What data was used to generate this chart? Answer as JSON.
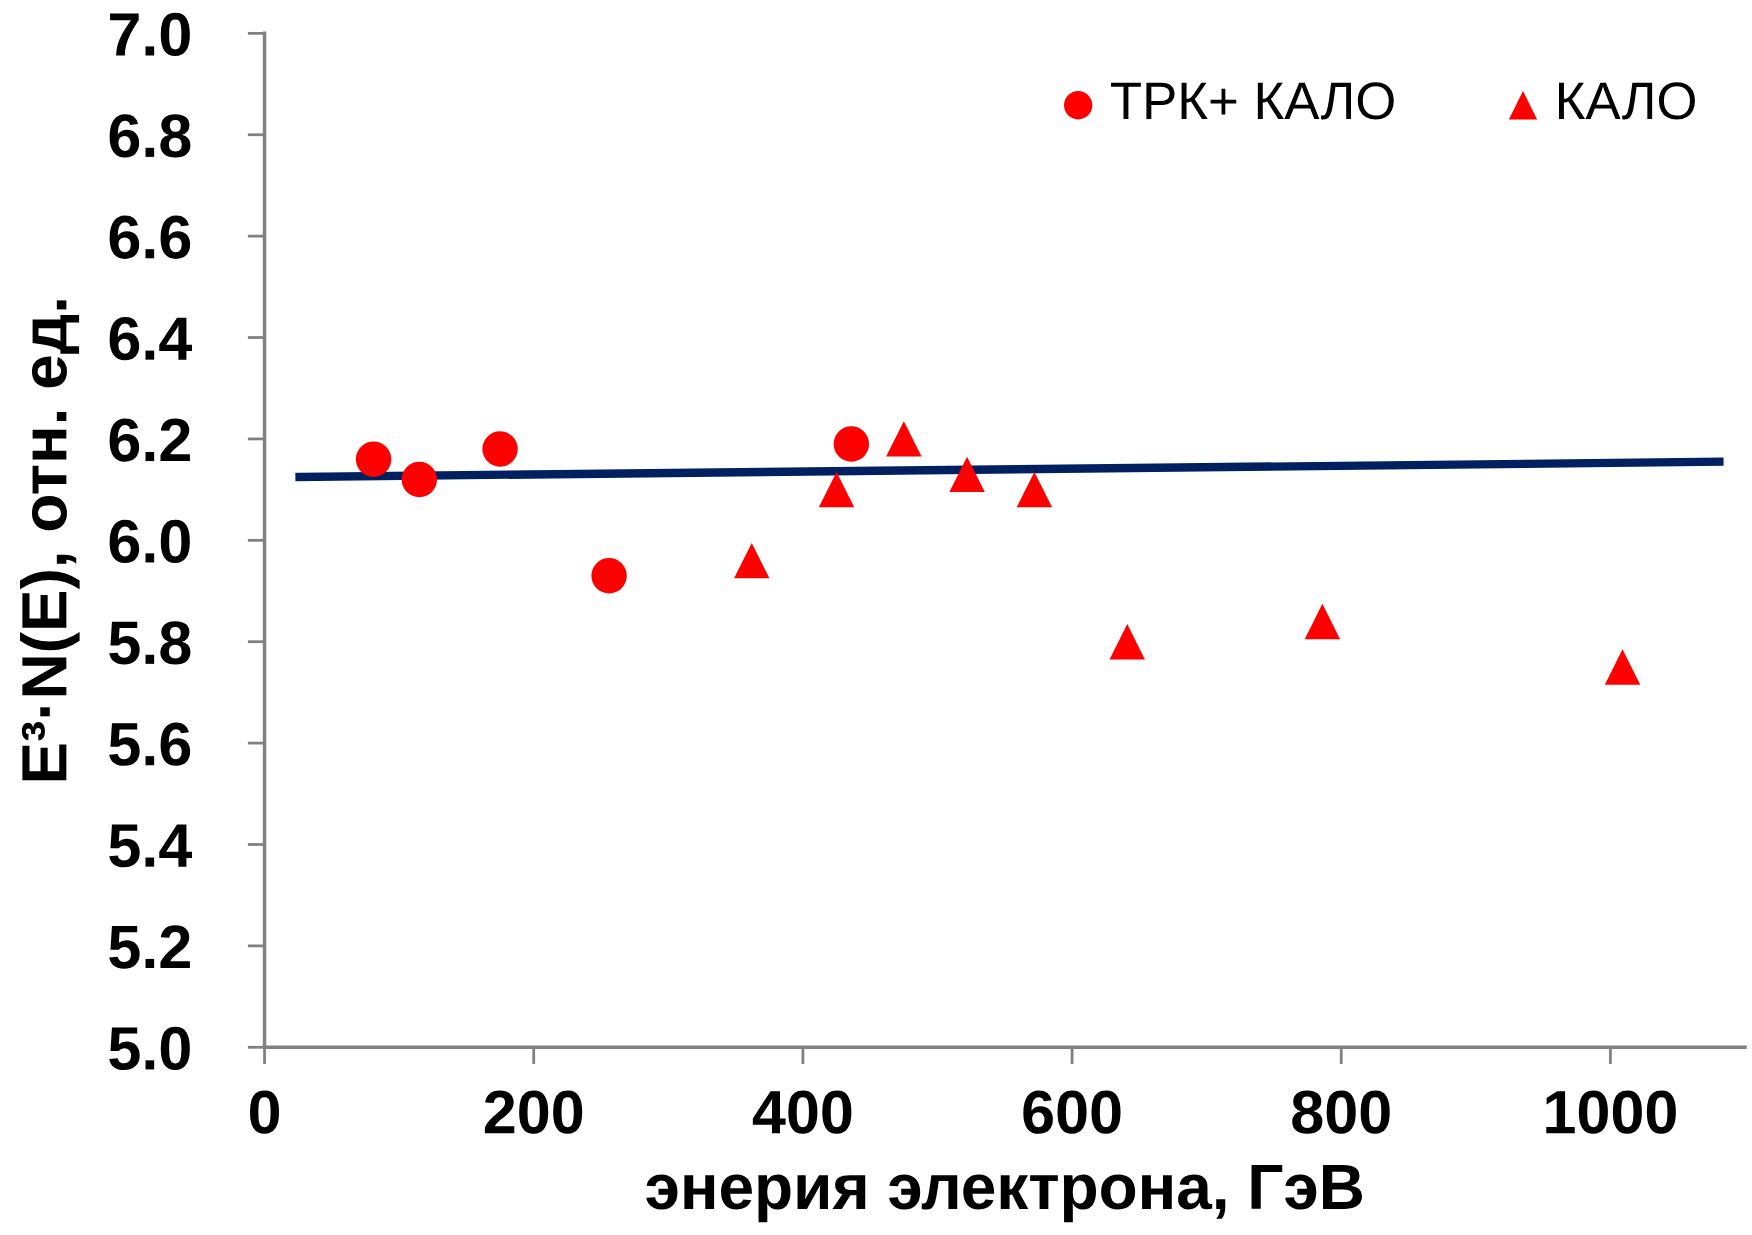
{
  "chart_data": {
    "type": "scatter",
    "xlabel": "энерия электрона, ГэВ",
    "ylabel": "E³·N(E), отн. ед.",
    "xlim": [
      0,
      1100
    ],
    "xticks": [
      0,
      200,
      400,
      600,
      800,
      1000
    ],
    "ylim": [
      5.0,
      7.0
    ],
    "yticks": [
      {
        "value": 5.0,
        "label": "5.0"
      },
      {
        "value": 5.2,
        "label": "5.2"
      },
      {
        "value": 5.4,
        "label": "5.4"
      },
      {
        "value": 5.6,
        "label": "5.6"
      },
      {
        "value": 5.8,
        "label": "5.8"
      },
      {
        "value": 6.0,
        "label": "6.0"
      },
      {
        "value": 6.2,
        "label": "6.2"
      },
      {
        "value": 6.4,
        "label": "6.4"
      },
      {
        "value": 6.6,
        "label": "6.6"
      },
      {
        "value": 6.8,
        "label": "6.8"
      },
      {
        "value": 7.0,
        "label": "7.0"
      }
    ],
    "grid": false,
    "legend": "top right",
    "series": [
      {
        "name": "ТРК+ КАЛО",
        "type": "scatter",
        "marker": "circle",
        "color": "#ff0000",
        "x": [
          81,
          115,
          175,
          256,
          436
        ],
        "values": [
          6.16,
          6.12,
          6.18,
          5.93,
          6.19
        ]
      },
      {
        "name": "КАЛО",
        "type": "scatter",
        "marker": "triangle",
        "color": "#ff0000",
        "x": [
          362,
          425,
          475,
          522,
          572,
          641,
          786,
          1009
        ],
        "values": [
          5.96,
          6.1,
          6.2,
          6.13,
          6.1,
          5.8,
          5.84,
          5.75
        ]
      },
      {
        "type": "line",
        "marker": "none",
        "color": "#002060",
        "x": [
          26,
          1081
        ],
        "values": [
          6.125,
          6.155
        ]
      }
    ]
  }
}
